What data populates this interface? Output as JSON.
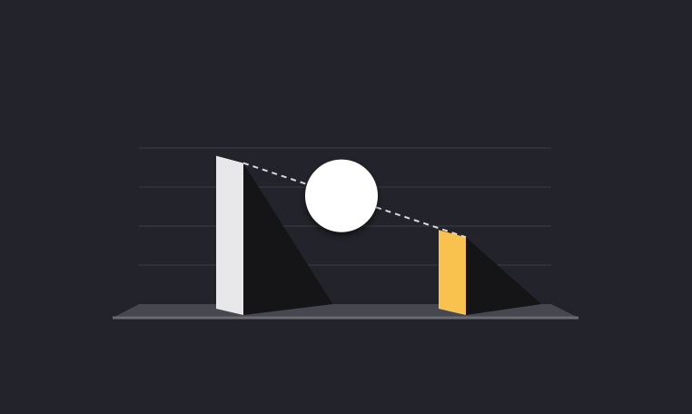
{
  "chart_data": {
    "type": "bar",
    "title": "",
    "xlabel": "",
    "ylabel": "",
    "categories": [
      "",
      ""
    ],
    "values": [
      3.8,
      1.9
    ],
    "ylim": [
      0,
      4
    ],
    "grid": true,
    "bar_colors": [
      "#e8e8ea",
      "#f9c24e"
    ],
    "trend_line": "dashed",
    "marker": "circle"
  },
  "colors": {
    "background": "#23242b",
    "accent": "#f9c24e",
    "marker": "#ffffff"
  }
}
